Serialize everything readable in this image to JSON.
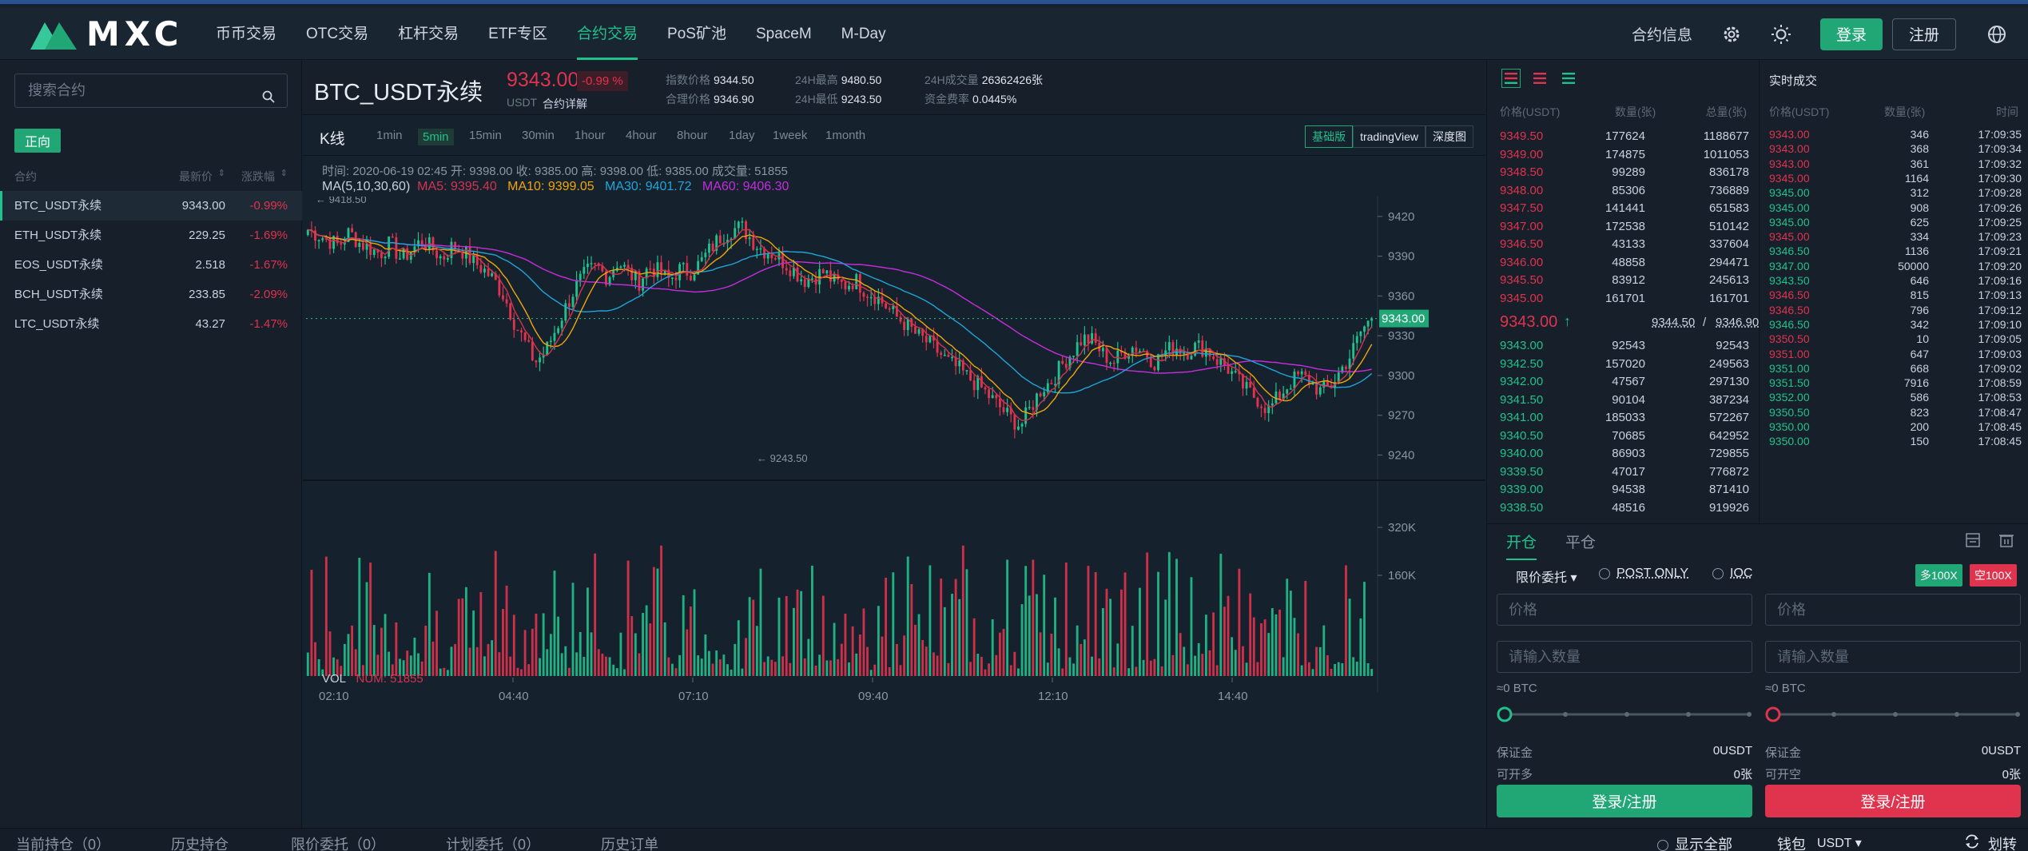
{
  "nav": {
    "logo_text": "MXC",
    "items": [
      "币币交易",
      "OTC交易",
      "杠杆交易",
      "ETF专区",
      "合约交易",
      "PoS矿池",
      "SpaceM",
      "M-Day"
    ],
    "active_index": 4,
    "contract_info": "合约信息",
    "login": "登录",
    "register": "注册"
  },
  "left": {
    "search_placeholder": "搜索合约",
    "direction_tag": "正向",
    "col_name": "合约",
    "col_price": "最新价",
    "col_change": "涨跌幅",
    "rows": [
      {
        "name": "BTC_USDT永续",
        "price": "9343.00",
        "change": "-0.99%"
      },
      {
        "name": "ETH_USDT永续",
        "price": "229.25",
        "change": "-1.69%"
      },
      {
        "name": "EOS_USDT永续",
        "price": "2.518",
        "change": "-1.67%"
      },
      {
        "name": "BCH_USDT永续",
        "price": "233.85",
        "change": "-2.09%"
      },
      {
        "name": "LTC_USDT永续",
        "price": "43.27",
        "change": "-1.47%"
      }
    ]
  },
  "ticker": {
    "pair": "BTC_USDT永续",
    "price": "9343.00",
    "change": "-0.99 %",
    "quote": "USDT",
    "detail": "合约详解",
    "index_label": "指数价格",
    "index_value": "9344.50",
    "fair_label": "合理价格",
    "fair_value": "9346.90",
    "high_label": "24H最高",
    "high_value": "9480.50",
    "low_label": "24H最低",
    "low_value": "9243.50",
    "vol_label": "24H成交量",
    "vol_value": "26362426张",
    "fund_label": "资金费率",
    "fund_value": "0.0445%"
  },
  "kline": {
    "title": "K线",
    "intervals": [
      "1min",
      "5min",
      "15min",
      "30min",
      "1hour",
      "4hour",
      "8hour",
      "1day",
      "1week",
      "1month"
    ],
    "active_interval": 1,
    "views": [
      "基础版",
      "tradingView",
      "深度图"
    ],
    "info_line": "时间: 2020-06-19 02:45    开: 9398.00    收: 9385.00    高: 9398.00    低: 9385.00    成交量: 51855",
    "ma_label": "MA(5,10,30,60)",
    "ma5": "MA5: 9395.40",
    "ma10": "MA10: 9399.05",
    "ma30": "MA30: 9401.72",
    "ma60": "MA60: 9406.30",
    "vol_label": "VOL",
    "vol_num": "NUM: 51855"
  },
  "chart_data": {
    "type": "candlestick",
    "y_range": [
      9230,
      9435
    ],
    "y_ticks": [
      9420,
      9390,
      9360,
      9330,
      9300,
      9270,
      9240
    ],
    "x_ticks": [
      "02:10",
      "04:40",
      "07:10",
      "09:40",
      "12:10",
      "14:40"
    ],
    "vol_ticks": [
      "320K",
      "160K"
    ],
    "last_price": "9343.00",
    "max_label": "9418.50",
    "min_label": "9243.50",
    "key_prices": [
      9410,
      9406,
      9402,
      9398,
      9408,
      9400,
      9396,
      9392,
      9400,
      9388,
      9394,
      9402,
      9396,
      9388,
      9398,
      9394,
      9386,
      9380,
      9372,
      9360,
      9340,
      9325,
      9310,
      9318,
      9335,
      9352,
      9368,
      9378,
      9382,
      9374,
      9386,
      9378,
      9370,
      9382,
      9378,
      9372,
      9380,
      9378,
      9385,
      9396,
      9405,
      9410,
      9412,
      9402,
      9395,
      9392,
      9386,
      9380,
      9372,
      9375,
      9378,
      9370,
      9368,
      9372,
      9364,
      9360,
      9352,
      9344,
      9338,
      9330,
      9325,
      9318,
      9310,
      9305,
      9298,
      9292,
      9284,
      9276,
      9268,
      9262,
      9276,
      9290,
      9296,
      9308,
      9318,
      9328,
      9326,
      9316,
      9310,
      9318,
      9322,
      9318,
      9310,
      9318,
      9322,
      9318,
      9322,
      9320,
      9312,
      9306,
      9296,
      9288,
      9282,
      9274,
      9284,
      9294,
      9300,
      9296,
      9288,
      9292,
      9304,
      9316,
      9334,
      9343
    ]
  },
  "orderbook": {
    "col_price": "价格(USDT)",
    "col_qty": "数量(张)",
    "col_total": "总量(张)",
    "asks": [
      [
        "9349.50",
        "177624",
        "1188677"
      ],
      [
        "9349.00",
        "174875",
        "1011053"
      ],
      [
        "9348.50",
        "99289",
        "836178"
      ],
      [
        "9348.00",
        "85306",
        "736889"
      ],
      [
        "9347.50",
        "141441",
        "651583"
      ],
      [
        "9347.00",
        "172538",
        "510142"
      ],
      [
        "9346.50",
        "43133",
        "337604"
      ],
      [
        "9346.00",
        "48858",
        "294471"
      ],
      [
        "9345.50",
        "83912",
        "245613"
      ],
      [
        "9345.00",
        "161701",
        "161701"
      ]
    ],
    "last": "9343.00",
    "arrow": "↑",
    "index": "9344.50",
    "fair": "9346.90",
    "bids": [
      [
        "9343.00",
        "92543",
        "92543"
      ],
      [
        "9342.50",
        "157020",
        "249563"
      ],
      [
        "9342.00",
        "47567",
        "297130"
      ],
      [
        "9341.50",
        "90104",
        "387234"
      ],
      [
        "9341.00",
        "185033",
        "572267"
      ],
      [
        "9340.50",
        "70685",
        "642952"
      ],
      [
        "9340.00",
        "86903",
        "729855"
      ],
      [
        "9339.50",
        "47017",
        "776872"
      ],
      [
        "9339.00",
        "94538",
        "871410"
      ],
      [
        "9338.50",
        "48516",
        "919926"
      ]
    ]
  },
  "trades": {
    "title": "实时成交",
    "col_price": "价格(USDT)",
    "col_qty": "数量(张)",
    "col_time": "时间",
    "rows": [
      [
        "9343.00",
        "346",
        "17:09:35",
        "r"
      ],
      [
        "9343.00",
        "368",
        "17:09:34",
        "r"
      ],
      [
        "9343.00",
        "361",
        "17:09:32",
        "r"
      ],
      [
        "9345.00",
        "1164",
        "17:09:30",
        "r"
      ],
      [
        "9345.00",
        "312",
        "17:09:28",
        "g"
      ],
      [
        "9345.00",
        "908",
        "17:09:26",
        "g"
      ],
      [
        "9345.00",
        "625",
        "17:09:25",
        "g"
      ],
      [
        "9345.00",
        "334",
        "17:09:23",
        "r"
      ],
      [
        "9346.50",
        "1136",
        "17:09:21",
        "g"
      ],
      [
        "9347.00",
        "50000",
        "17:09:20",
        "g"
      ],
      [
        "9343.50",
        "646",
        "17:09:16",
        "g"
      ],
      [
        "9346.50",
        "815",
        "17:09:13",
        "r"
      ],
      [
        "9346.50",
        "796",
        "17:09:12",
        "r"
      ],
      [
        "9346.50",
        "342",
        "17:09:10",
        "g"
      ],
      [
        "9350.50",
        "10",
        "17:09:05",
        "r"
      ],
      [
        "9351.00",
        "647",
        "17:09:03",
        "r"
      ],
      [
        "9351.00",
        "668",
        "17:09:02",
        "g"
      ],
      [
        "9351.50",
        "7916",
        "17:08:59",
        "g"
      ],
      [
        "9352.00",
        "586",
        "17:08:53",
        "g"
      ],
      [
        "9350.50",
        "823",
        "17:08:47",
        "g"
      ],
      [
        "9350.00",
        "200",
        "17:08:45",
        "g"
      ],
      [
        "9350.00",
        "150",
        "17:08:45",
        "g"
      ]
    ]
  },
  "order": {
    "tab_open": "开仓",
    "tab_close": "平仓",
    "order_type": "限价委托",
    "post_only": "POST ONLY",
    "ioc": "IOC",
    "long_lev": "多100X",
    "short_lev": "空100X",
    "price_placeholder": "价格",
    "qty_placeholder": "请输入数量",
    "approx": "≈0 BTC",
    "margin_label": "保证金",
    "margin_value": "0USDT",
    "can_long": "可开多",
    "can_short": "可开空",
    "can_value": "0张",
    "btn": "登录/注册"
  },
  "bottom": {
    "tabs": [
      "当前持仓（0）",
      "历史持仓",
      "限价委托（0）",
      "计划委托（0）",
      "历史订单"
    ],
    "show_all": "显示全部",
    "wallet": "钱包",
    "wallet_coin": "USDT",
    "transfer": "划转"
  },
  "colors": {
    "green": "#21c18c",
    "red": "#e0334d",
    "ma5": "#d3344e",
    "ma10": "#f0a60a",
    "ma30": "#1fa5d8",
    "ma60": "#c62ddb"
  }
}
